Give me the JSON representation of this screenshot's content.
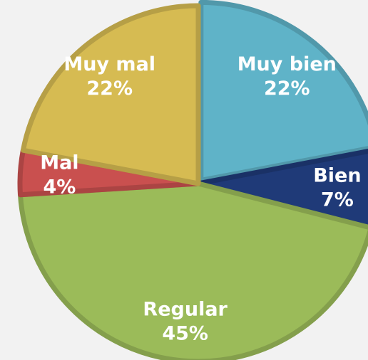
{
  "chart_data": {
    "type": "pie",
    "categories": [
      "Muy bien",
      "Bien",
      "Regular",
      "Mal",
      "Muy mal"
    ],
    "values": [
      22,
      7,
      45,
      4,
      22
    ],
    "value_labels": [
      "22%",
      "7%",
      "45%",
      "4%",
      "22%"
    ],
    "colors": [
      "#5fb3c8",
      "#1f3a78",
      "#9bbb59",
      "#c9504f",
      "#d6bb52"
    ]
  }
}
